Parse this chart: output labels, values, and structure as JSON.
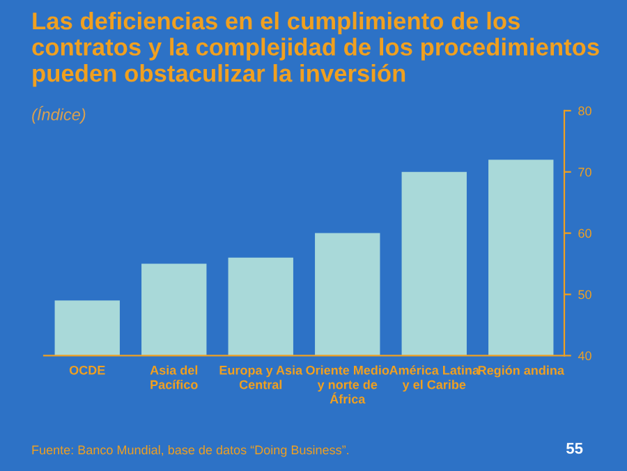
{
  "chart_data": {
    "type": "bar",
    "title": "Las deficiencias en el cumplimiento de los contratos y la complejidad de los procedimientos pueden obstaculizar la inversión",
    "subtitle": "(Índice)",
    "categories": [
      "OCDE",
      "Asia del Pacífico",
      "Europa y Asia Central",
      "Oriente Medio y norte de África",
      "América Latina y el Caribe",
      "Región andina"
    ],
    "values": [
      49,
      55,
      56,
      60,
      70,
      72
    ],
    "color": "#a9d9d9",
    "ylim": [
      40,
      80
    ],
    "yticks": [
      40,
      50,
      60,
      70,
      80
    ],
    "grid": false,
    "annotations": [
      "Fuente: Banco Mundial, base de datos “Doing Business”.",
      "55"
    ]
  }
}
